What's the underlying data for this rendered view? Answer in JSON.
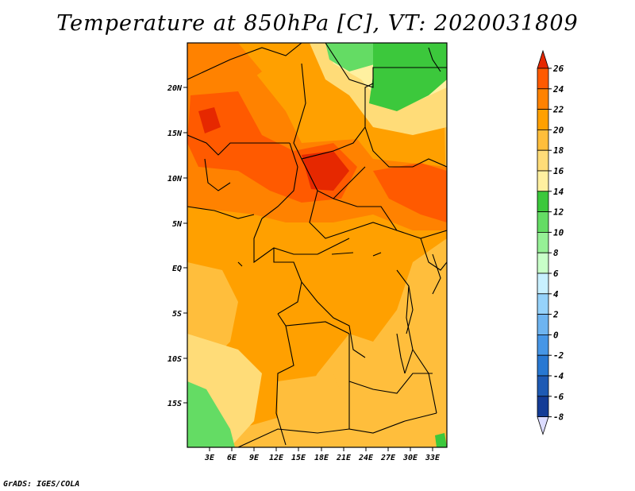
{
  "title": "Temperature at 850hPa [C], VT: 2020031809",
  "credit": "GrADS: IGES/COLA",
  "axes": {
    "lat_labels": [
      "20N",
      "15N",
      "10N",
      "5N",
      "EQ",
      "5S",
      "10S",
      "15S"
    ],
    "lon_labels": [
      "3E",
      "6E",
      "9E",
      "12E",
      "15E",
      "18E",
      "21E",
      "24E",
      "27E",
      "30E",
      "33E"
    ]
  },
  "colorbar": {
    "labels": [
      "26",
      "24",
      "22",
      "20",
      "18",
      "16",
      "14",
      "12",
      "10",
      "8",
      "6",
      "4",
      "2",
      "0",
      "-2",
      "-4",
      "-6",
      "-8"
    ],
    "colors": [
      "#e62800",
      "#ff5a00",
      "#ff8200",
      "#ffa000",
      "#ffbe3c",
      "#ffdc78",
      "#fff0a0",
      "#3cc83c",
      "#64dc64",
      "#96f096",
      "#c8ffc8",
      "#c8f0ff",
      "#96d2fa",
      "#6eb4f0",
      "#4696e6",
      "#2878d2",
      "#1e5ab4",
      "#143c96",
      "#0a1e64",
      "#dcdcff"
    ]
  },
  "chart_data": {
    "type": "heatmap",
    "title": "Temperature at 850hPa [C], VT: 2020031809",
    "variable": "Temperature at 850hPa",
    "units": "C",
    "valid_time": "2020031809",
    "lon_range": [
      0,
      35
    ],
    "lat_range": [
      -20,
      25
    ],
    "color_levels": [
      -8,
      -6,
      -4,
      -2,
      0,
      2,
      4,
      6,
      8,
      10,
      12,
      14,
      16,
      18,
      20,
      22,
      24,
      26
    ]
  }
}
